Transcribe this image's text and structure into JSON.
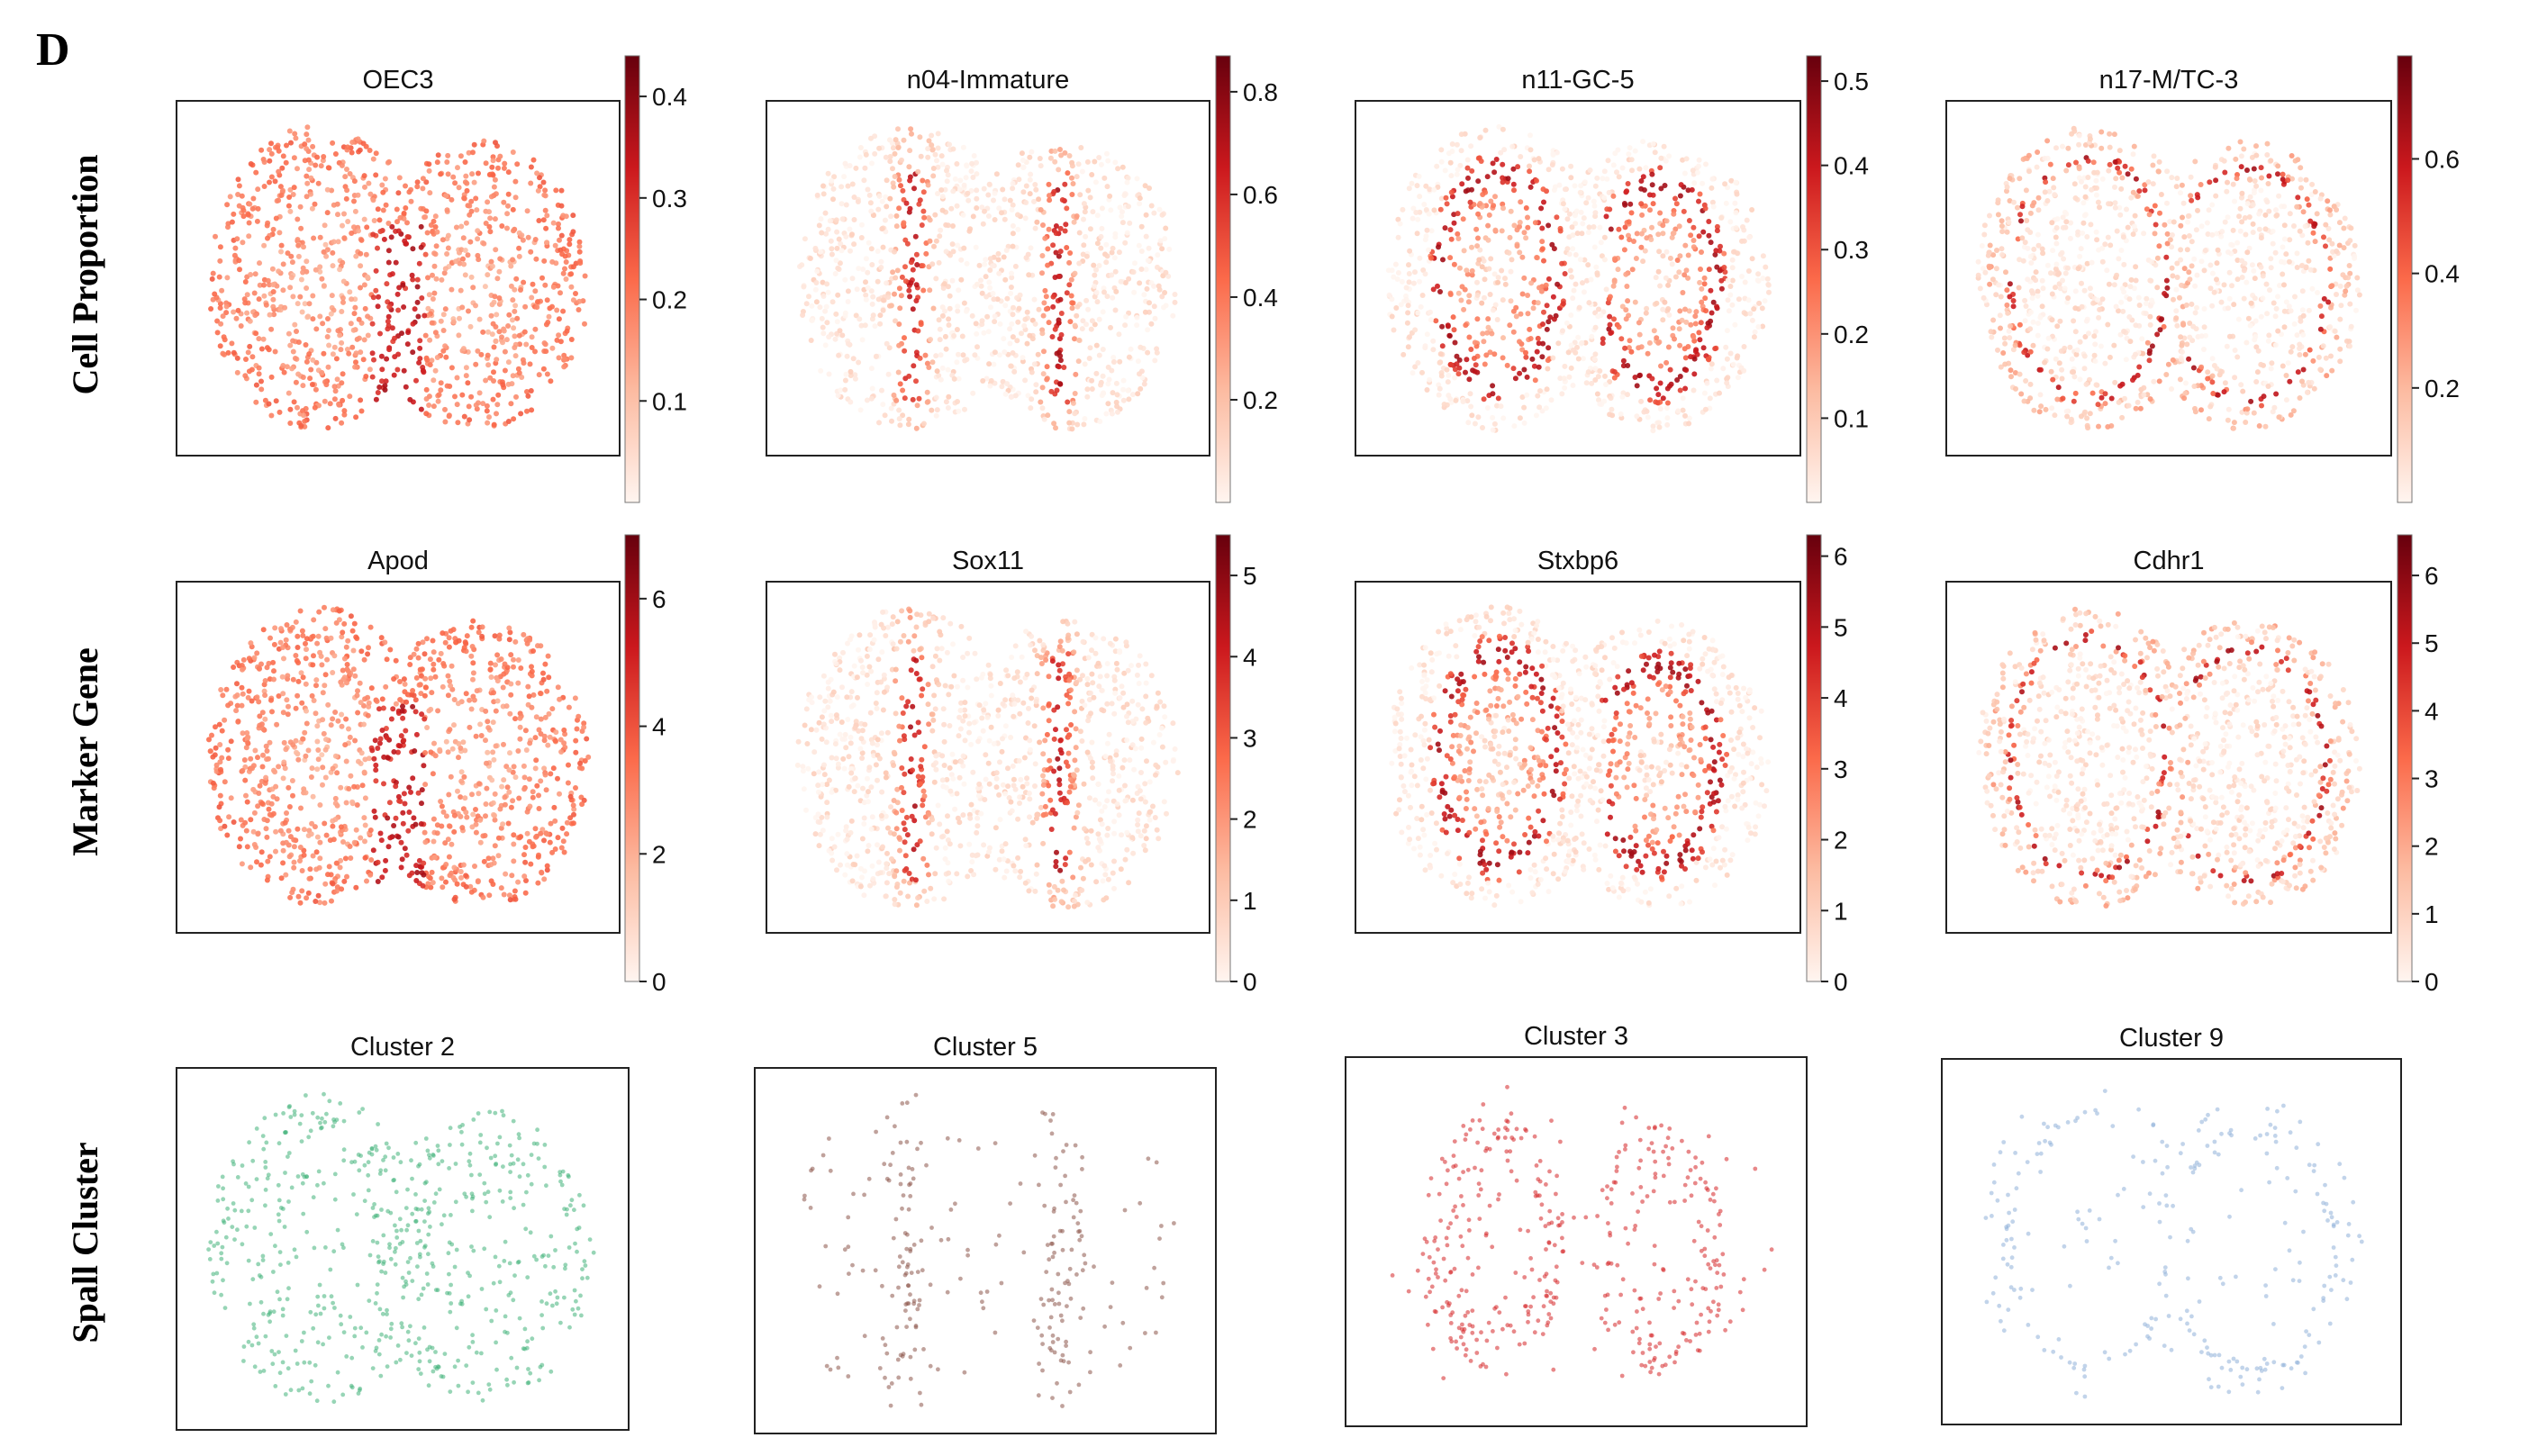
{
  "figure": {
    "panel_letter": "D",
    "row_labels": [
      "Cell Proportion",
      "Marker Gene",
      "Spall Cluster"
    ]
  },
  "colors": {
    "reds_low": "#fff5f0",
    "reds_mid": "#f6553d",
    "reds_high": "#67000d",
    "cluster_2": "#41b37a",
    "cluster_5": "#8c564b",
    "cluster_3": "#d62728",
    "cluster_9": "#8fb0d9"
  },
  "chart_data": [
    {
      "type": "heatmap",
      "row": "Cell Proportion",
      "title": "OEC3",
      "colorbar": {
        "ticks": [
          0.1,
          0.2,
          0.3,
          0.4
        ],
        "range": [
          0,
          0.44
        ]
      },
      "pattern": "diffuse"
    },
    {
      "type": "heatmap",
      "row": "Cell Proportion",
      "title": "n04-Immature",
      "colorbar": {
        "ticks": [
          0.2,
          0.4,
          0.6,
          0.8
        ],
        "range": [
          0,
          0.87
        ]
      },
      "pattern": "center"
    },
    {
      "type": "heatmap",
      "row": "Cell Proportion",
      "title": "n11-GC-5",
      "colorbar": {
        "ticks": [
          0.1,
          0.2,
          0.3,
          0.4,
          0.5
        ],
        "range": [
          0,
          0.53
        ]
      },
      "pattern": "gc"
    },
    {
      "type": "heatmap",
      "row": "Cell Proportion",
      "title": "n17-M/TC-3",
      "colorbar": {
        "ticks": [
          0.2,
          0.4,
          0.6
        ],
        "range": [
          0,
          0.78
        ]
      },
      "pattern": "ring"
    },
    {
      "type": "heatmap",
      "row": "Marker Gene",
      "title": "Apod",
      "colorbar": {
        "ticks": [
          0,
          2,
          4,
          6
        ],
        "range": [
          0,
          7
        ]
      },
      "pattern": "diffuse"
    },
    {
      "type": "heatmap",
      "row": "Marker Gene",
      "title": "Sox11",
      "colorbar": {
        "ticks": [
          0,
          1,
          2,
          3,
          4,
          5
        ],
        "range": [
          0,
          5.5
        ]
      },
      "pattern": "center"
    },
    {
      "type": "heatmap",
      "row": "Marker Gene",
      "title": "Stxbp6",
      "colorbar": {
        "ticks": [
          0,
          1,
          2,
          3,
          4,
          5,
          6
        ],
        "range": [
          0,
          6.3
        ]
      },
      "pattern": "gc"
    },
    {
      "type": "heatmap",
      "row": "Marker Gene",
      "title": "Cdhr1",
      "colorbar": {
        "ticks": [
          0,
          1,
          2,
          3,
          4,
          5,
          6
        ],
        "range": [
          0,
          6.6
        ]
      },
      "pattern": "ring"
    },
    {
      "type": "scatter",
      "row": "Spall Cluster",
      "title": "Cluster 2",
      "pattern": "diffuse"
    },
    {
      "type": "scatter",
      "row": "Spall Cluster",
      "title": "Cluster 5",
      "pattern": "center"
    },
    {
      "type": "scatter",
      "row": "Spall Cluster",
      "title": "Cluster 3",
      "pattern": "gc"
    },
    {
      "type": "scatter",
      "row": "Spall Cluster",
      "title": "Cluster 9",
      "pattern": "ring"
    }
  ]
}
